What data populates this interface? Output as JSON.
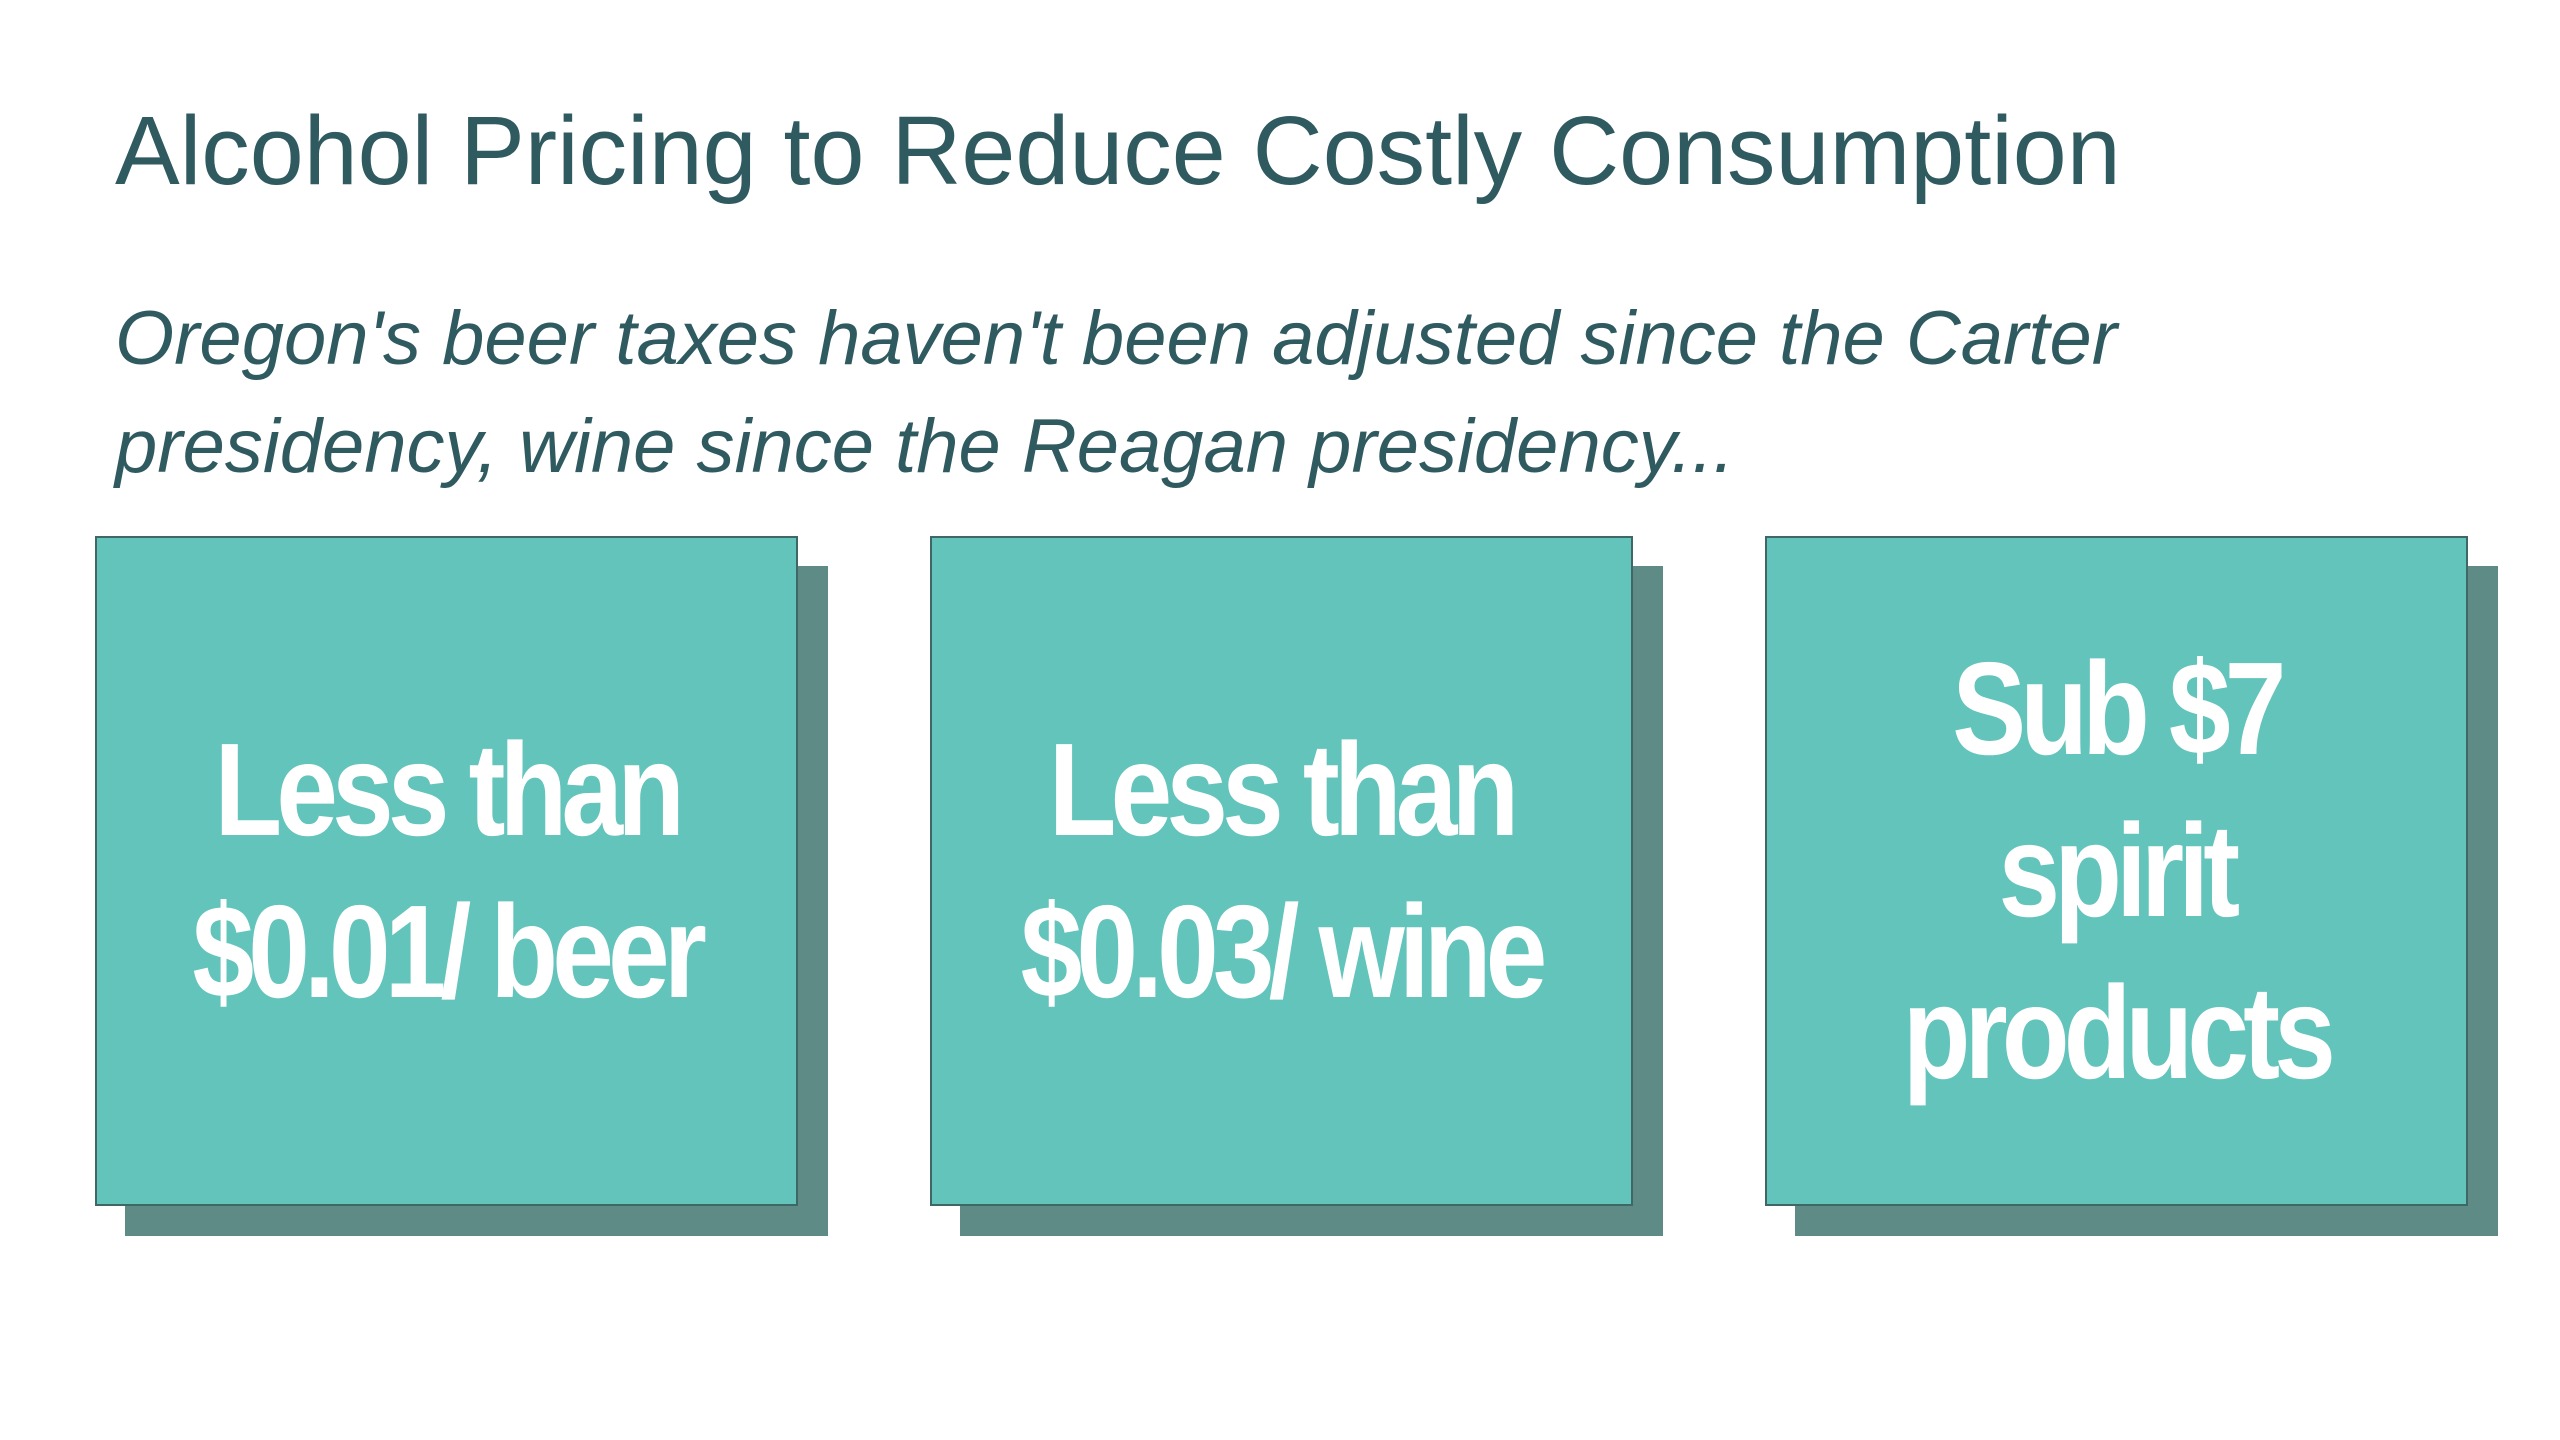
{
  "slide": {
    "title": "Alcohol Pricing to Reduce Costly Consumption",
    "subtitle": "Oregon's beer taxes haven't been adjusted since the Carter presidency, wine since the Reagan presidency...",
    "cards": [
      {
        "text": "Less than\n$0.01/ beer"
      },
      {
        "text": "Less than\n$0.03/ wine"
      },
      {
        "text": "Sub $7\nspirit\nproducts"
      }
    ]
  },
  "colors": {
    "title_text": "#2f5a60",
    "card_fill": "#63c4bc",
    "card_shadow": "#5f8b86",
    "card_text": "#ffffff"
  }
}
